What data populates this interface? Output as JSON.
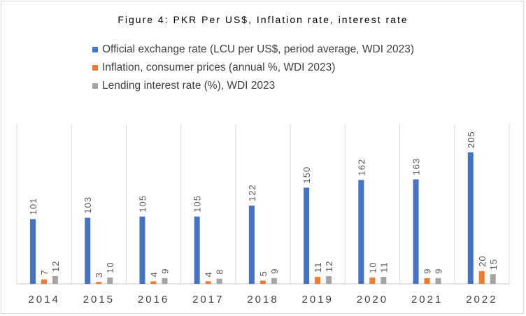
{
  "chart_data": {
    "type": "bar",
    "title": "Figure 4: PKR Per US$, Inflation rate, interest rate",
    "categories": [
      "2014",
      "2015",
      "2016",
      "2017",
      "2018",
      "2019",
      "2020",
      "2021",
      "2022"
    ],
    "series": [
      {
        "name": "Official exchange rate (LCU per US$, period average, WDI 2023)",
        "color": "#4472c4",
        "values": [
          101,
          103,
          105,
          105,
          122,
          150,
          162,
          163,
          205
        ]
      },
      {
        "name": "Inflation, consumer prices (annual %, WDI 2023)",
        "color": "#ed7d31",
        "values": [
          7,
          3,
          4,
          4,
          5,
          11,
          10,
          9,
          20
        ]
      },
      {
        "name": "Lending interest rate (%), WDI 2023",
        "color": "#a5a5a5",
        "values": [
          12,
          10,
          9,
          8,
          9,
          12,
          11,
          9,
          15
        ]
      }
    ],
    "xlabel": "",
    "ylabel": "",
    "ylim": [
      0,
      250
    ],
    "grid": false,
    "legend": "top",
    "data_labels": true
  }
}
